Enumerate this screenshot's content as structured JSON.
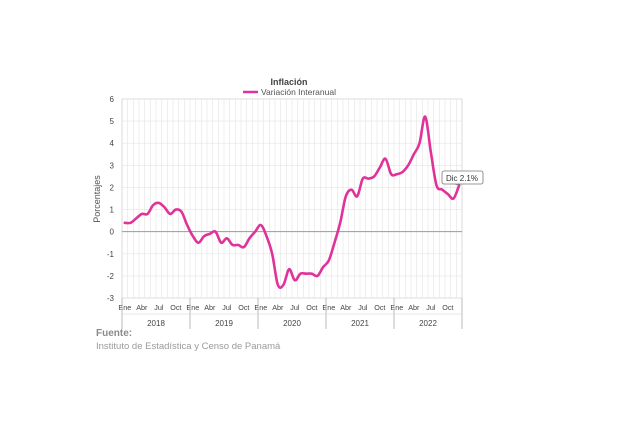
{
  "source": {
    "label": "Fuente:",
    "text": "Instituto de Estadística y Censo de Panamá"
  },
  "chart_data": {
    "type": "line",
    "title": "Inflación",
    "xlabel": "",
    "ylabel": "Porcentajes",
    "ylim": [
      -3,
      6
    ],
    "yticks": [
      -3,
      -2,
      -1,
      0,
      1,
      2,
      3,
      4,
      5,
      6
    ],
    "grid": true,
    "legend_position": "top-center",
    "line_color": "#e0339a",
    "month_tick_labels": [
      "Ene",
      "Abr",
      "Jul",
      "Oct"
    ],
    "years": [
      "2018",
      "2019",
      "2020",
      "2021",
      "2022"
    ],
    "series": [
      {
        "name": "Variación Interanual",
        "values": [
          0.4,
          0.4,
          0.6,
          0.8,
          0.8,
          1.2,
          1.3,
          1.1,
          0.8,
          1.0,
          0.9,
          0.3,
          -0.2,
          -0.5,
          -0.2,
          -0.1,
          0.0,
          -0.5,
          -0.3,
          -0.6,
          -0.6,
          -0.7,
          -0.3,
          0.0,
          0.3,
          -0.2,
          -1.0,
          -2.4,
          -2.4,
          -1.7,
          -2.2,
          -1.9,
          -1.9,
          -1.9,
          -2.0,
          -1.6,
          -1.3,
          -0.5,
          0.4,
          1.6,
          1.9,
          1.6,
          2.4,
          2.4,
          2.5,
          2.9,
          3.3,
          2.6,
          2.6,
          2.7,
          3.0,
          3.5,
          4.0,
          5.2,
          3.6,
          2.1,
          1.9,
          1.7,
          1.5,
          2.1
        ]
      }
    ],
    "annotation": {
      "text": "Dic 2.1%"
    }
  }
}
